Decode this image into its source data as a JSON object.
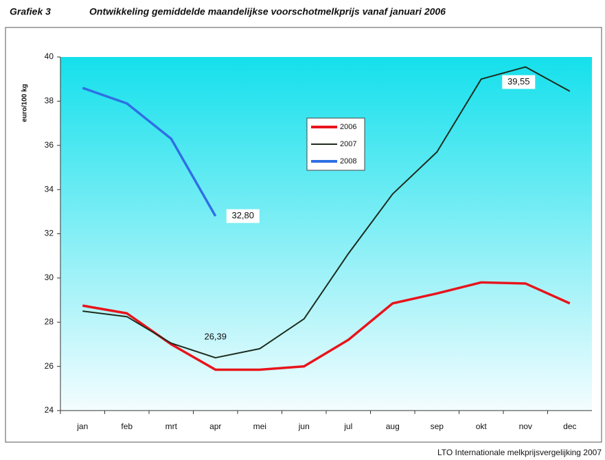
{
  "chart_data": {
    "type": "line",
    "figure_label": "Grafiek 3",
    "title": "Ontwikkeling gemiddelde maandelijkse voorschotmelkprijs vanaf januari 2006",
    "y_label": "euro/100 kg",
    "source": "LTO Internationale melkprijsvergelijking 2007",
    "categories": [
      "jan",
      "feb",
      "mrt",
      "apr",
      "mei",
      "jun",
      "jul",
      "aug",
      "sep",
      "okt",
      "nov",
      "dec"
    ],
    "series": [
      {
        "name": "2006",
        "color": "#e8141b",
        "values": [
          28.75,
          28.4,
          27.0,
          25.85,
          25.85,
          26.0,
          27.2,
          28.85,
          29.3,
          29.8,
          29.75,
          28.85
        ]
      },
      {
        "name": "2007",
        "color": "#1c2b1c",
        "values": [
          28.5,
          28.25,
          27.05,
          26.39,
          26.8,
          28.15,
          31.1,
          33.8,
          35.7,
          39.0,
          39.55,
          38.45
        ],
        "value_labels": [
          null,
          null,
          null,
          "26,39",
          null,
          null,
          null,
          null,
          null,
          null,
          "39,55",
          null
        ]
      },
      {
        "name": "2008",
        "color": "#2f6fe4",
        "values": [
          38.6,
          37.9,
          36.3,
          32.8,
          null,
          null,
          null,
          null,
          null,
          null,
          null,
          null
        ],
        "value_labels": [
          null,
          null,
          null,
          "32,80",
          null,
          null,
          null,
          null,
          null,
          null,
          null,
          null
        ]
      }
    ],
    "ylim": [
      24,
      40
    ],
    "yticks": [
      24,
      26,
      28,
      30,
      32,
      34,
      36,
      38,
      40
    ]
  }
}
